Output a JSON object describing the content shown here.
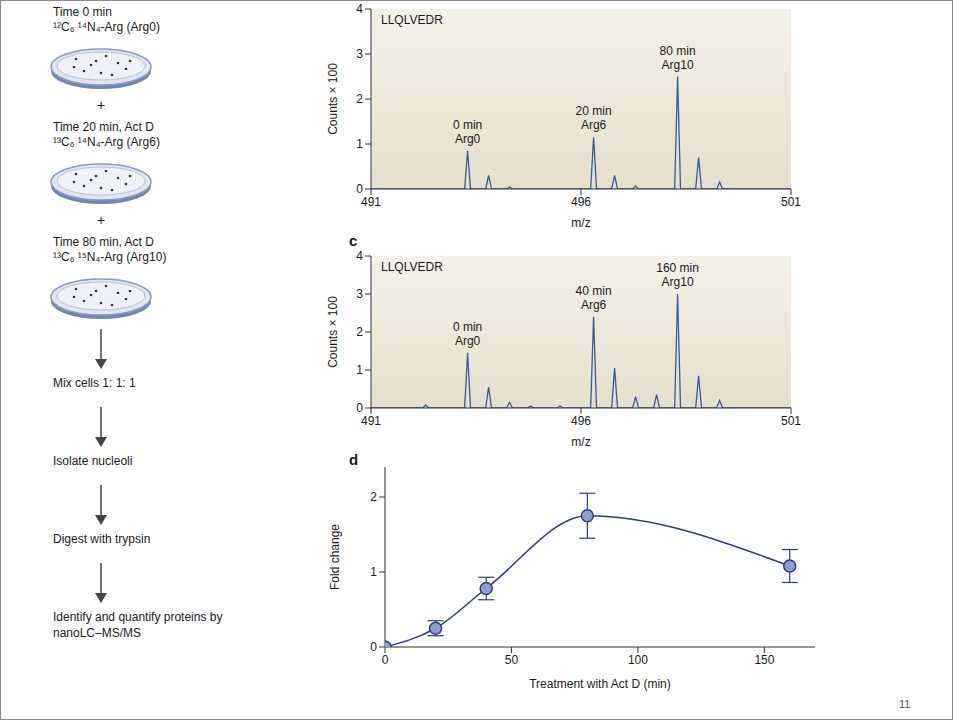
{
  "diagram": {
    "steps": [
      {
        "time": "Time 0 min",
        "label": "¹²C₆ ¹⁴N₄-Arg (Arg0)"
      },
      {
        "time": "Time 20 min, Act D",
        "label": "¹³C₆ ¹⁴N₄-Arg (Arg6)"
      },
      {
        "time": "Time 80 min, Act D",
        "label": "¹³C₆ ¹⁵N₄-Arg (Arg10)"
      }
    ],
    "joiner": "+",
    "workflow": [
      "Mix cells 1: 1: 1",
      "Isolate nucleoli",
      "Digest with trypsin",
      "Identify and quantify proteins by nanoLC–MS/MS"
    ]
  },
  "page_number": "11",
  "chart_data": [
    {
      "type": "spectrum",
      "title": "LLQLVEDR",
      "x_label": "m/z",
      "y_label": "Counts × 100",
      "xlim": [
        491,
        501
      ],
      "xticks": [
        491,
        496,
        501
      ],
      "ylim": [
        0,
        4
      ],
      "yticks": [
        0,
        1,
        2,
        3,
        4
      ],
      "grid": false,
      "color": "#3b5a9a",
      "peaks": [
        {
          "mz": 493.3,
          "counts": 0.85,
          "label": [
            "0 min",
            "Arg0"
          ]
        },
        {
          "mz": 493.8,
          "counts": 0.3
        },
        {
          "mz": 494.3,
          "counts": 0.05
        },
        {
          "mz": 496.3,
          "counts": 1.15,
          "label": [
            "20 min",
            "Arg6"
          ]
        },
        {
          "mz": 496.8,
          "counts": 0.3
        },
        {
          "mz": 497.3,
          "counts": 0.07
        },
        {
          "mz": 498.3,
          "counts": 2.5,
          "label": [
            "80 min",
            "Arg10"
          ]
        },
        {
          "mz": 498.8,
          "counts": 0.7
        },
        {
          "mz": 499.3,
          "counts": 0.15
        }
      ]
    },
    {
      "type": "spectrum",
      "panel_letter": "c",
      "title": "LLQLVEDR",
      "x_label": "m/z",
      "y_label": "Counts × 100",
      "xlim": [
        491,
        501
      ],
      "xticks": [
        491,
        496,
        501
      ],
      "ylim": [
        0,
        4
      ],
      "yticks": [
        0,
        1,
        2,
        3,
        4
      ],
      "grid": false,
      "color": "#3b5a9a",
      "peaks": [
        {
          "mz": 492.3,
          "counts": 0.08
        },
        {
          "mz": 493.3,
          "counts": 1.45,
          "label": [
            "0 min",
            "Arg0"
          ]
        },
        {
          "mz": 493.8,
          "counts": 0.55
        },
        {
          "mz": 494.3,
          "counts": 0.15
        },
        {
          "mz": 494.8,
          "counts": 0.05
        },
        {
          "mz": 495.5,
          "counts": 0.06
        },
        {
          "mz": 496.3,
          "counts": 2.4,
          "label": [
            "40 min",
            "Arg6"
          ]
        },
        {
          "mz": 496.8,
          "counts": 1.05
        },
        {
          "mz": 497.3,
          "counts": 0.3
        },
        {
          "mz": 497.8,
          "counts": 0.35
        },
        {
          "mz": 498.3,
          "counts": 3.0,
          "label": [
            "160 min",
            "Arg10"
          ]
        },
        {
          "mz": 498.8,
          "counts": 0.85
        },
        {
          "mz": 499.3,
          "counts": 0.2
        }
      ]
    },
    {
      "type": "line",
      "panel_letter": "d",
      "x_label": "Treatment with Act D (min)",
      "y_label": "Fold change",
      "x": [
        0,
        20,
        40,
        80,
        160
      ],
      "values": [
        0,
        0.25,
        0.78,
        1.75,
        1.08
      ],
      "errors": [
        0,
        0.1,
        0.15,
        0.3,
        0.22
      ],
      "xlim": [
        0,
        170
      ],
      "xticks": [
        0,
        50,
        100,
        150
      ],
      "ylim": [
        0,
        2.4
      ],
      "yticks": [
        0,
        1,
        2
      ],
      "grid": false,
      "color": "#2e3f73",
      "marker": "circle"
    }
  ]
}
